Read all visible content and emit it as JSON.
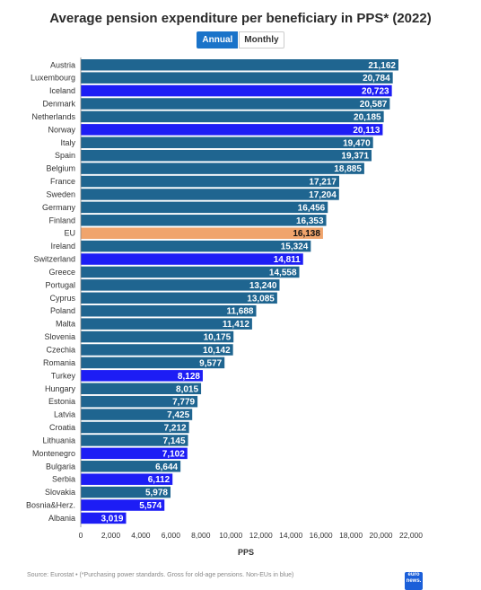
{
  "header": {
    "title": "Average pension expenditure per beneficiary in PPS* (2022)",
    "toggle_annual": "Annual",
    "toggle_monthly": "Monthly"
  },
  "chart_data": {
    "type": "bar",
    "orientation": "horizontal",
    "title": "Average pension expenditure per beneficiary in PPS* (2022)",
    "xlabel": "PPS",
    "ylabel": "",
    "xlim": [
      0,
      22000
    ],
    "xticks": [
      "0",
      "2,000",
      "4,000",
      "6,000",
      "8,000",
      "10,000",
      "12,000",
      "14,000",
      "16,000",
      "18,000",
      "20,000",
      "22,000"
    ],
    "grid": false,
    "categories": [
      "Austria",
      "Luxembourg",
      "Iceland",
      "Denmark",
      "Netherlands",
      "Norway",
      "Italy",
      "Spain",
      "Belgium",
      "France",
      "Sweden",
      "Germany",
      "Finland",
      "EU",
      "Ireland",
      "Switzerland",
      "Greece",
      "Portugal",
      "Cyprus",
      "Poland",
      "Malta",
      "Slovenia",
      "Czechia",
      "Romania",
      "Turkey",
      "Hungary",
      "Estonia",
      "Latvia",
      "Croatia",
      "Lithuania",
      "Montenegro",
      "Bulgaria",
      "Serbia",
      "Slovakia",
      "Bosnia&Herz.",
      "Albania"
    ],
    "values": [
      21162,
      20784,
      20723,
      20587,
      20185,
      20113,
      19470,
      19371,
      18885,
      17217,
      17204,
      16456,
      16353,
      16138,
      15324,
      14811,
      14558,
      13240,
      13085,
      11688,
      11412,
      10175,
      10142,
      9577,
      8128,
      8015,
      7779,
      7425,
      7212,
      7145,
      7102,
      6644,
      6112,
      5978,
      5574,
      3019
    ],
    "value_labels": [
      "21,162",
      "20,784",
      "20,723",
      "20,587",
      "20,185",
      "20,113",
      "19,470",
      "19,371",
      "18,885",
      "17,217",
      "17,204",
      "16,456",
      "16,353",
      "16,138",
      "15,324",
      "14,811",
      "14,558",
      "13,240",
      "13,085",
      "11,688",
      "11,412",
      "10,175",
      "10,142",
      "9,577",
      "8,128",
      "8,015",
      "7,779",
      "7,425",
      "7,212",
      "7,145",
      "7,102",
      "6,644",
      "6,112",
      "5,978",
      "5,574",
      "3,019"
    ],
    "groups": [
      "eu",
      "eu",
      "noneu",
      "eu",
      "eu",
      "noneu",
      "eu",
      "eu",
      "eu",
      "eu",
      "eu",
      "eu",
      "eu",
      "euavg",
      "eu",
      "noneu",
      "eu",
      "eu",
      "eu",
      "eu",
      "eu",
      "eu",
      "eu",
      "eu",
      "noneu",
      "eu",
      "eu",
      "eu",
      "eu",
      "eu",
      "noneu",
      "eu",
      "noneu",
      "eu",
      "noneu",
      "noneu"
    ],
    "colors": {
      "eu": "#1f6590",
      "noneu": "#1d1df5",
      "euavg": "#f0a46c"
    }
  },
  "footer": {
    "source": "Source: Eurostat • (*Purchasing power standards. Gross for old-age pensions. Non-EUs in blue)",
    "logo_line1": "euro",
    "logo_line2": "news."
  }
}
